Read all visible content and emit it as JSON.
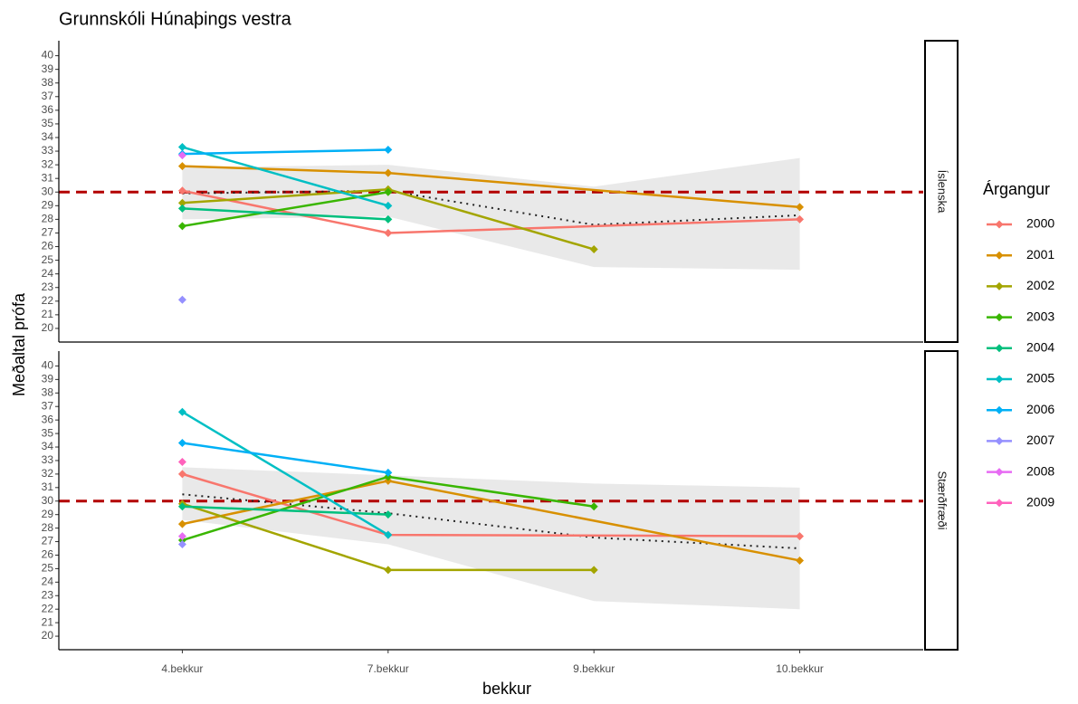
{
  "chart_data": {
    "type": "line",
    "title": "Grunnskóli Húnaþings vestra",
    "x_label": "bekkur",
    "y_label": "Meðaltal prófa",
    "legend_title": "Árgangur",
    "legend_position": "right",
    "connect_gaps": true,
    "reference_line": 30,
    "categories": [
      "4.bekkur",
      "7.bekkur",
      "9.bekkur",
      "10.bekkur"
    ],
    "groups": [
      {
        "name": "2000",
        "color": "#F8766D"
      },
      {
        "name": "2001",
        "color": "#D89000"
      },
      {
        "name": "2002",
        "color": "#A3A500"
      },
      {
        "name": "2003",
        "color": "#39B600"
      },
      {
        "name": "2004",
        "color": "#00BF7D"
      },
      {
        "name": "2005",
        "color": "#00BFC4"
      },
      {
        "name": "2006",
        "color": "#00B0F6"
      },
      {
        "name": "2007",
        "color": "#9590FF"
      },
      {
        "name": "2008",
        "color": "#E76BF3"
      },
      {
        "name": "2009",
        "color": "#FF62BC"
      }
    ],
    "facets": [
      {
        "label": "Íslenska",
        "ylim": [
          19,
          41.1
        ],
        "yticks": [
          20,
          21,
          22,
          23,
          24,
          25,
          26,
          27,
          28,
          29,
          30,
          31,
          32,
          33,
          34,
          35,
          36,
          37,
          38,
          39,
          40
        ],
        "series": [
          {
            "values": [
              30.1,
              27.0,
              null,
              28.0
            ]
          },
          {
            "values": [
              31.9,
              31.4,
              null,
              28.9
            ]
          },
          {
            "values": [
              29.2,
              30.2,
              25.8,
              null
            ]
          },
          {
            "values": [
              27.5,
              30.0,
              null,
              null
            ]
          },
          {
            "values": [
              28.8,
              28.0,
              null,
              null
            ]
          },
          {
            "values": [
              33.3,
              29.0,
              null,
              null
            ]
          },
          {
            "values": [
              32.8,
              33.1,
              null,
              null
            ]
          },
          {
            "values": [
              22.1,
              null,
              null,
              null
            ]
          },
          {
            "values": [
              32.7,
              null,
              null,
              null
            ]
          },
          {
            "values": [
              null,
              null,
              null,
              null
            ]
          }
        ],
        "trend": [
          29.9,
          30.1,
          27.6,
          28.3
        ],
        "band_lower": [
          28.0,
          28.2,
          24.5,
          24.3
        ],
        "band_upper": [
          31.8,
          32.0,
          30.4,
          32.5
        ]
      },
      {
        "label": "Stærðfræði",
        "ylim": [
          19,
          41.1
        ],
        "yticks": [
          20,
          21,
          22,
          23,
          24,
          25,
          26,
          27,
          28,
          29,
          30,
          31,
          32,
          33,
          34,
          35,
          36,
          37,
          38,
          39,
          40
        ],
        "series": [
          {
            "values": [
              32.0,
              27.5,
              null,
              27.4
            ]
          },
          {
            "values": [
              28.3,
              31.5,
              null,
              25.6
            ]
          },
          {
            "values": [
              29.8,
              24.9,
              24.9,
              null
            ]
          },
          {
            "values": [
              27.1,
              31.8,
              29.6,
              null
            ]
          },
          {
            "values": [
              29.6,
              29.0,
              null,
              null
            ]
          },
          {
            "values": [
              36.6,
              27.5,
              null,
              null
            ]
          },
          {
            "values": [
              34.3,
              32.1,
              null,
              null
            ]
          },
          {
            "values": [
              26.8,
              null,
              null,
              null
            ]
          },
          {
            "values": [
              27.4,
              null,
              null,
              null
            ]
          },
          {
            "values": [
              32.9,
              null,
              null,
              null
            ]
          }
        ],
        "trend": [
          30.5,
          29.1,
          27.3,
          26.5
        ],
        "band_lower": [
          28.6,
          26.8,
          22.6,
          22.0
        ],
        "band_upper": [
          32.5,
          31.9,
          31.3,
          31.0
        ]
      }
    ]
  }
}
